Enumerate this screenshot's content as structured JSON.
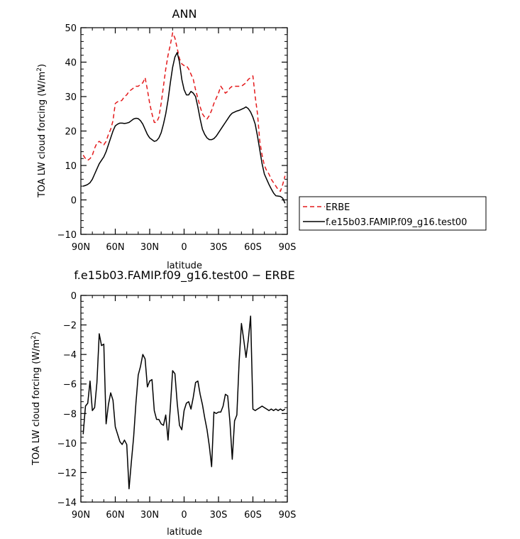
{
  "chart_data": [
    {
      "type": "line",
      "title": "ANN",
      "xlabel": "latitude",
      "ylabel": "TOA LW cloud forcing (W/m",
      "ylabel_sup": "2",
      "ylabel_close": ")",
      "xlim": [
        90,
        -90
      ],
      "ylim": [
        -10,
        50
      ],
      "xticks": [
        90,
        60,
        30,
        0,
        -30,
        -60,
        -90
      ],
      "xtick_labels": [
        "90N",
        "60N",
        "30N",
        "0",
        "30S",
        "60S",
        "90S"
      ],
      "yticks": [
        -10,
        0,
        10,
        20,
        30,
        40,
        50
      ],
      "ytick_labels": [
        "−10",
        "0",
        "10",
        "20",
        "30",
        "40",
        "50"
      ],
      "legend_position": "right",
      "series": [
        {
          "name": "ERBE",
          "color": "#e41a1c",
          "dash": "dashed",
          "x": [
            88,
            86,
            84,
            82,
            80,
            78,
            76,
            74,
            72,
            70,
            68,
            66,
            64,
            62,
            60,
            58,
            56,
            54,
            52,
            50,
            48,
            46,
            44,
            42,
            40,
            38,
            36,
            34,
            32,
            30,
            28,
            26,
            24,
            22,
            20,
            18,
            16,
            14,
            12,
            10,
            8,
            6,
            4,
            2,
            0,
            -2,
            -4,
            -6,
            -8,
            -10,
            -12,
            -14,
            -16,
            -18,
            -20,
            -22,
            -24,
            -26,
            -28,
            -30,
            -32,
            -34,
            -36,
            -38,
            -40,
            -42,
            -44,
            -46,
            -48,
            -50,
            -52,
            -54,
            -56,
            -58,
            -60,
            -62,
            -64,
            -66,
            -68,
            -70,
            -72,
            -74,
            -76,
            -78,
            -80,
            -82,
            -84,
            -86,
            -88
          ],
          "y": [
            13,
            12,
            11.5,
            12,
            13,
            15,
            16.5,
            17,
            16.5,
            16,
            17,
            19,
            20.5,
            23,
            28,
            28.5,
            28.5,
            29,
            30,
            30.5,
            31.5,
            32,
            32.5,
            33,
            33,
            33.5,
            34,
            35.5,
            32,
            28,
            25,
            22.5,
            22.5,
            24,
            28,
            33,
            38,
            42,
            45,
            48.5,
            47,
            44,
            41,
            39.5,
            39,
            39,
            38,
            36.5,
            35,
            32,
            29.5,
            27,
            25,
            24,
            23.5,
            24.5,
            26,
            28,
            29.5,
            31,
            33,
            32,
            31,
            31.5,
            32.5,
            33,
            33,
            33,
            33,
            33,
            33.5,
            34,
            35,
            35.5,
            36,
            30,
            25,
            17,
            13,
            10,
            8.5,
            7.5,
            6,
            5,
            4,
            3,
            2.5,
            4.5,
            7
          ]
        },
        {
          "name": "f.e15b03.FAMIP.f09_g16.test00",
          "color": "#000000",
          "dash": "solid",
          "x": [
            88,
            86,
            84,
            82,
            80,
            78,
            76,
            74,
            72,
            70,
            68,
            66,
            64,
            62,
            60,
            58,
            56,
            54,
            52,
            50,
            48,
            46,
            44,
            42,
            40,
            38,
            36,
            34,
            32,
            30,
            28,
            26,
            24,
            22,
            20,
            18,
            16,
            14,
            12,
            10,
            8,
            6,
            4,
            2,
            0,
            -2,
            -4,
            -6,
            -8,
            -10,
            -12,
            -14,
            -16,
            -18,
            -20,
            -22,
            -24,
            -26,
            -28,
            -30,
            -32,
            -34,
            -36,
            -38,
            -40,
            -42,
            -44,
            -46,
            -48,
            -50,
            -52,
            -54,
            -56,
            -58,
            -60,
            -62,
            -64,
            -66,
            -68,
            -70,
            -72,
            -74,
            -76,
            -78,
            -80,
            -82,
            -84,
            -86,
            -88
          ],
          "y": [
            4,
            4.2,
            4.5,
            5,
            6,
            7.5,
            9,
            10.5,
            11.5,
            12.5,
            14,
            16,
            18,
            20,
            21.5,
            22,
            22.3,
            22.3,
            22.2,
            22.3,
            22.5,
            23,
            23.5,
            23.7,
            23.6,
            23,
            22,
            20.5,
            19,
            18,
            17.5,
            17,
            17.2,
            18,
            19.5,
            22,
            25,
            29,
            34,
            38.5,
            41.5,
            42.8,
            40,
            35,
            32,
            30.5,
            30.5,
            31.5,
            31,
            30,
            27,
            23.5,
            20.5,
            19,
            18,
            17.5,
            17.5,
            17.8,
            18.5,
            19.5,
            20.5,
            21.5,
            22.5,
            23.5,
            24.5,
            25.2,
            25.5,
            25.8,
            26,
            26.3,
            26.6,
            27,
            26.5,
            25.5,
            24,
            22,
            18.5,
            14.5,
            10.5,
            7.5,
            6,
            4.5,
            3.2,
            2,
            1.2,
            1.1,
            1,
            0.5,
            -1
          ]
        }
      ]
    },
    {
      "type": "line",
      "title": "f.e15b03.FAMIP.f09_g16.test00 − ERBE",
      "xlabel": "latitude",
      "ylabel": "TOA LW cloud forcing (W/m",
      "ylabel_sup": "2",
      "ylabel_close": ")",
      "xlim": [
        90,
        -90
      ],
      "ylim": [
        -14,
        0
      ],
      "xticks": [
        90,
        60,
        30,
        0,
        -30,
        -60,
        -90
      ],
      "xtick_labels": [
        "90N",
        "60N",
        "30N",
        "0",
        "30S",
        "60S",
        "90S"
      ],
      "yticks": [
        -14,
        -12,
        -10,
        -8,
        -6,
        -4,
        -2,
        0
      ],
      "ytick_labels": [
        "−14",
        "−12",
        "−10",
        "−8",
        "−6",
        "−4",
        "−2",
        "0"
      ],
      "series": [
        {
          "color": "#000000",
          "dash": "solid",
          "x": [
            88,
            86,
            84,
            82,
            80,
            78,
            76,
            74,
            72,
            70,
            68,
            66,
            64,
            62,
            60,
            58,
            56,
            54,
            52,
            50,
            48,
            46,
            44,
            42,
            40,
            38,
            36,
            34,
            32,
            30,
            28,
            26,
            24,
            22,
            20,
            18,
            16,
            14,
            12,
            10,
            8,
            6,
            4,
            2,
            0,
            -2,
            -4,
            -6,
            -8,
            -10,
            -12,
            -14,
            -16,
            -18,
            -20,
            -22,
            -24,
            -26,
            -28,
            -30,
            -32,
            -34,
            -36,
            -38,
            -40,
            -42,
            -44,
            -46,
            -48,
            -50,
            -52,
            -54,
            -56,
            -58,
            -60,
            -62,
            -64,
            -66,
            -68,
            -70,
            -72,
            -74,
            -76,
            -78,
            -80,
            -82,
            -84,
            -86,
            -88
          ],
          "y": [
            -9.4,
            -7.5,
            -7.3,
            -5.8,
            -7.8,
            -7.6,
            -5.9,
            -2.6,
            -3.4,
            -3.3,
            -8.7,
            -7.4,
            -6.6,
            -7.1,
            -8.9,
            -9.4,
            -9.9,
            -10.1,
            -9.8,
            -10.1,
            -13.1,
            -11.3,
            -9.6,
            -7.3,
            -5.4,
            -4.8,
            -4.0,
            -4.3,
            -6.2,
            -5.8,
            -5.7,
            -7.8,
            -8.4,
            -8.4,
            -8.7,
            -8.8,
            -8.1,
            -9.8,
            -7.6,
            -5.1,
            -5.3,
            -7.3,
            -8.8,
            -9.1,
            -7.8,
            -7.3,
            -7.2,
            -7.7,
            -6.9,
            -5.9,
            -5.8,
            -6.7,
            -7.4,
            -8.3,
            -9.1,
            -10.2,
            -11.6,
            -7.9,
            -8.0,
            -7.9,
            -7.9,
            -7.5,
            -6.7,
            -6.8,
            -8.6,
            -11.1,
            -8.5,
            -8.1,
            -4.5,
            -1.9,
            -3.0,
            -4.2,
            -3.0,
            -1.4,
            -7.7,
            -7.8,
            -7.7,
            -7.6,
            -7.5,
            -7.6,
            -7.7,
            -7.8,
            -7.7,
            -7.8,
            -7.7,
            -7.8,
            -7.7,
            -7.8,
            -7.7
          ]
        }
      ]
    }
  ]
}
